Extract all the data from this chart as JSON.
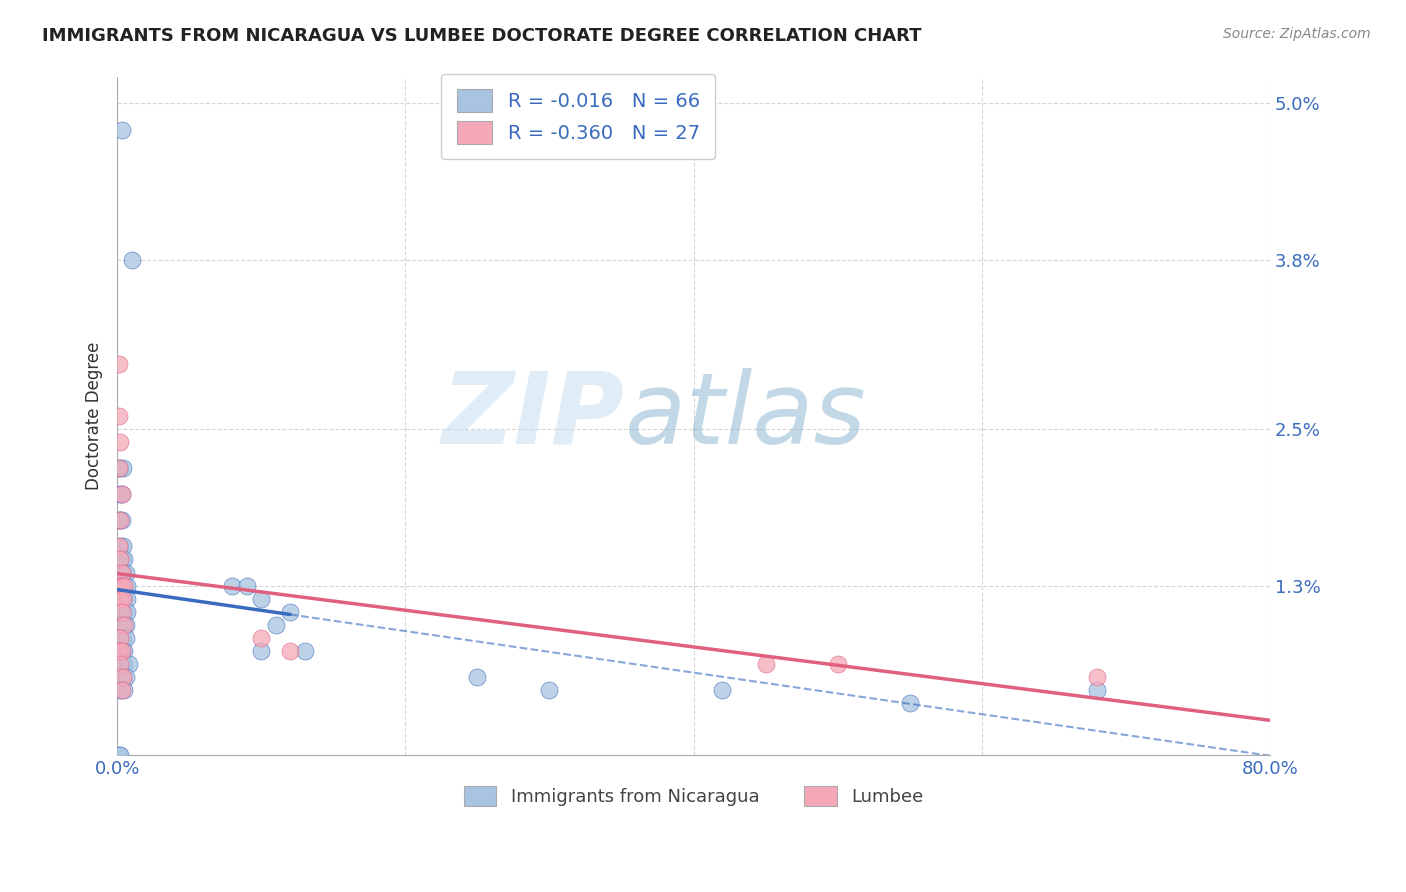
{
  "title": "IMMIGRANTS FROM NICARAGUA VS LUMBEE DOCTORATE DEGREE CORRELATION CHART",
  "source": "Source: ZipAtlas.com",
  "ylabel": "Doctorate Degree",
  "yticks": [
    0.0,
    0.013,
    0.025,
    0.038,
    0.05
  ],
  "ytick_labels": [
    "",
    "1.3%",
    "2.5%",
    "3.8%",
    "5.0%"
  ],
  "xticks": [
    0.0,
    0.2,
    0.4,
    0.6,
    0.8
  ],
  "xtick_labels": [
    "0.0%",
    "",
    "",
    "",
    "80.0%"
  ],
  "blue_R": "-0.016",
  "blue_N": "66",
  "pink_R": "-0.360",
  "pink_N": "27",
  "blue_color": "#a8c4e0",
  "pink_color": "#f4a8b8",
  "blue_line_color": "#3a6bbf",
  "pink_line_color": "#e06080",
  "blue_scatter": [
    [
      0.003,
      0.048
    ],
    [
      0.01,
      0.038
    ],
    [
      0.001,
      0.022
    ],
    [
      0.002,
      0.022
    ],
    [
      0.004,
      0.022
    ],
    [
      0.002,
      0.02
    ],
    [
      0.003,
      0.02
    ],
    [
      0.001,
      0.018
    ],
    [
      0.002,
      0.018
    ],
    [
      0.003,
      0.018
    ],
    [
      0.002,
      0.016
    ],
    [
      0.004,
      0.016
    ],
    [
      0.002,
      0.015
    ],
    [
      0.003,
      0.015
    ],
    [
      0.005,
      0.015
    ],
    [
      0.002,
      0.014
    ],
    [
      0.004,
      0.014
    ],
    [
      0.006,
      0.014
    ],
    [
      0.001,
      0.013
    ],
    [
      0.003,
      0.013
    ],
    [
      0.005,
      0.013
    ],
    [
      0.007,
      0.013
    ],
    [
      0.001,
      0.012
    ],
    [
      0.002,
      0.012
    ],
    [
      0.003,
      0.012
    ],
    [
      0.005,
      0.012
    ],
    [
      0.007,
      0.012
    ],
    [
      0.001,
      0.011
    ],
    [
      0.002,
      0.011
    ],
    [
      0.003,
      0.011
    ],
    [
      0.005,
      0.011
    ],
    [
      0.007,
      0.011
    ],
    [
      0.001,
      0.01
    ],
    [
      0.002,
      0.01
    ],
    [
      0.004,
      0.01
    ],
    [
      0.006,
      0.01
    ],
    [
      0.001,
      0.009
    ],
    [
      0.002,
      0.009
    ],
    [
      0.004,
      0.009
    ],
    [
      0.006,
      0.009
    ],
    [
      0.001,
      0.008
    ],
    [
      0.003,
      0.008
    ],
    [
      0.005,
      0.008
    ],
    [
      0.001,
      0.007
    ],
    [
      0.003,
      0.007
    ],
    [
      0.005,
      0.007
    ],
    [
      0.008,
      0.007
    ],
    [
      0.002,
      0.006
    ],
    [
      0.004,
      0.006
    ],
    [
      0.006,
      0.006
    ],
    [
      0.002,
      0.005
    ],
    [
      0.005,
      0.005
    ],
    [
      0.001,
      0.0
    ],
    [
      0.002,
      0.0
    ],
    [
      0.08,
      0.013
    ],
    [
      0.09,
      0.013
    ],
    [
      0.1,
      0.012
    ],
    [
      0.11,
      0.01
    ],
    [
      0.12,
      0.011
    ],
    [
      0.1,
      0.008
    ],
    [
      0.13,
      0.008
    ],
    [
      0.25,
      0.006
    ],
    [
      0.3,
      0.005
    ],
    [
      0.42,
      0.005
    ],
    [
      0.55,
      0.004
    ],
    [
      0.68,
      0.005
    ]
  ],
  "pink_scatter": [
    [
      0.001,
      0.03
    ],
    [
      0.001,
      0.026
    ],
    [
      0.002,
      0.024
    ],
    [
      0.001,
      0.022
    ],
    [
      0.003,
      0.02
    ],
    [
      0.002,
      0.018
    ],
    [
      0.001,
      0.016
    ],
    [
      0.002,
      0.015
    ],
    [
      0.003,
      0.014
    ],
    [
      0.001,
      0.013
    ],
    [
      0.003,
      0.013
    ],
    [
      0.005,
      0.013
    ],
    [
      0.002,
      0.012
    ],
    [
      0.004,
      0.012
    ],
    [
      0.003,
      0.011
    ],
    [
      0.005,
      0.01
    ],
    [
      0.002,
      0.009
    ],
    [
      0.001,
      0.008
    ],
    [
      0.003,
      0.008
    ],
    [
      0.002,
      0.007
    ],
    [
      0.004,
      0.006
    ],
    [
      0.003,
      0.005
    ],
    [
      0.1,
      0.009
    ],
    [
      0.12,
      0.008
    ],
    [
      0.45,
      0.007
    ],
    [
      0.5,
      0.007
    ],
    [
      0.68,
      0.006
    ]
  ],
  "watermark_zip": "ZIP",
  "watermark_atlas": "atlas",
  "background_color": "#ffffff",
  "grid_color": "#cccccc",
  "xlim": [
    0.0,
    0.8
  ],
  "ylim": [
    0.0,
    0.052
  ],
  "blue_line_solid_end": 0.12,
  "pink_line_end": 0.8
}
